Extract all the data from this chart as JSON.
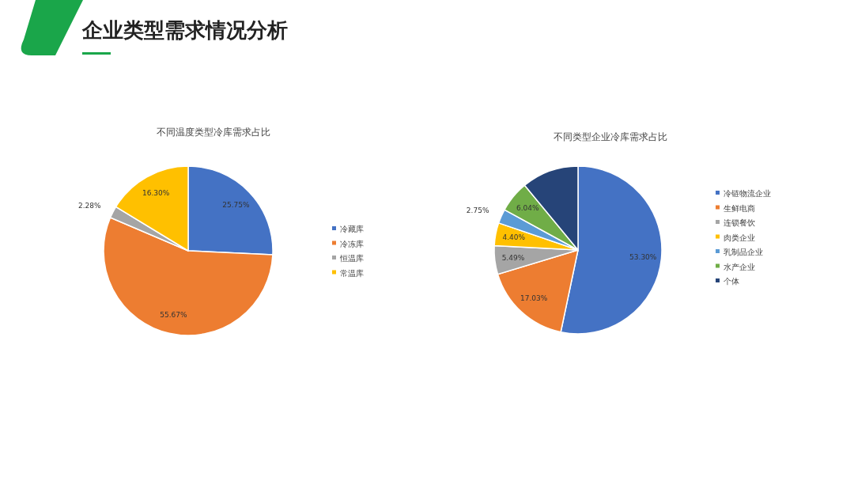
{
  "chart_data": [
    {
      "type": "pie",
      "title": "不同温度类型冷库需求占比",
      "annotations": [
        "企业类型需求情况分析"
      ],
      "categories": [
        "冷藏库",
        "冷冻库",
        "恒温库",
        "常温库"
      ],
      "values": [
        25.75,
        55.67,
        2.28,
        16.3
      ],
      "colors": [
        "#4472c4",
        "#ed7d31",
        "#a5a5a5",
        "#ffc000"
      ],
      "value_labels": [
        "25.75%",
        "55.67%",
        "2.28%",
        "16.30%"
      ],
      "legend": "right"
    },
    {
      "type": "pie",
      "title": "不同类型企业冷库需求占比",
      "categories": [
        "冷链物流企业",
        "生鲜电商",
        "连锁餐饮",
        "肉类企业",
        "乳制品企业",
        "水产企业",
        "个体"
      ],
      "values": [
        53.3,
        17.03,
        5.49,
        4.4,
        2.75,
        6.04,
        10.99
      ],
      "colors": [
        "#4472c4",
        "#ed7d31",
        "#a5a5a5",
        "#ffc000",
        "#5b9bd5",
        "#70ad47",
        "#264478"
      ],
      "value_labels": [
        "53.30%",
        "17.03%",
        "5.49%",
        "4.40%",
        "2.75%",
        "6.04%",
        null
      ],
      "legend": "right"
    }
  ]
}
